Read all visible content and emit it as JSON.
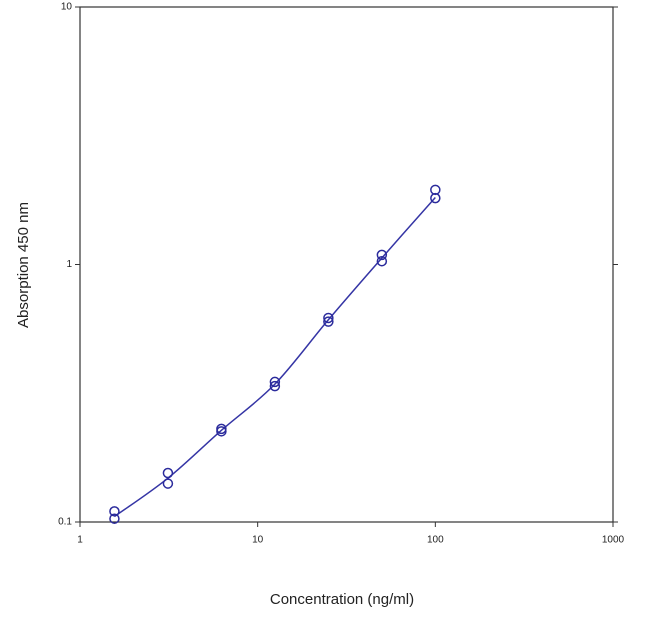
{
  "chart_data": {
    "type": "scatter",
    "xlabel": "Concentration (ng/ml)",
    "ylabel": "Absorption 450 nm",
    "log_x": true,
    "log_y": true,
    "xlim": [
      1,
      1000
    ],
    "ylim": [
      0.1,
      10
    ],
    "xticks": [
      1,
      10,
      100,
      1000
    ],
    "yticks": [
      0.1,
      1,
      10
    ],
    "series": [
      {
        "color": "#2b2b9c",
        "x": [
          1.5625,
          1.5625,
          3.125,
          3.125,
          6.25,
          6.25,
          12.5,
          12.5,
          25,
          25,
          50,
          50,
          100,
          100
        ],
        "values": [
          0.11,
          0.103,
          0.155,
          0.141,
          0.23,
          0.225,
          0.35,
          0.337,
          0.62,
          0.6,
          1.09,
          1.03,
          1.95,
          1.81
        ]
      }
    ],
    "fit": {
      "color": "#3535a5",
      "x": [
        1.5625,
        3.125,
        6.25,
        12.5,
        25,
        50,
        100
      ],
      "values": [
        0.105,
        0.148,
        0.227,
        0.343,
        0.61,
        1.06,
        1.82
      ]
    }
  }
}
